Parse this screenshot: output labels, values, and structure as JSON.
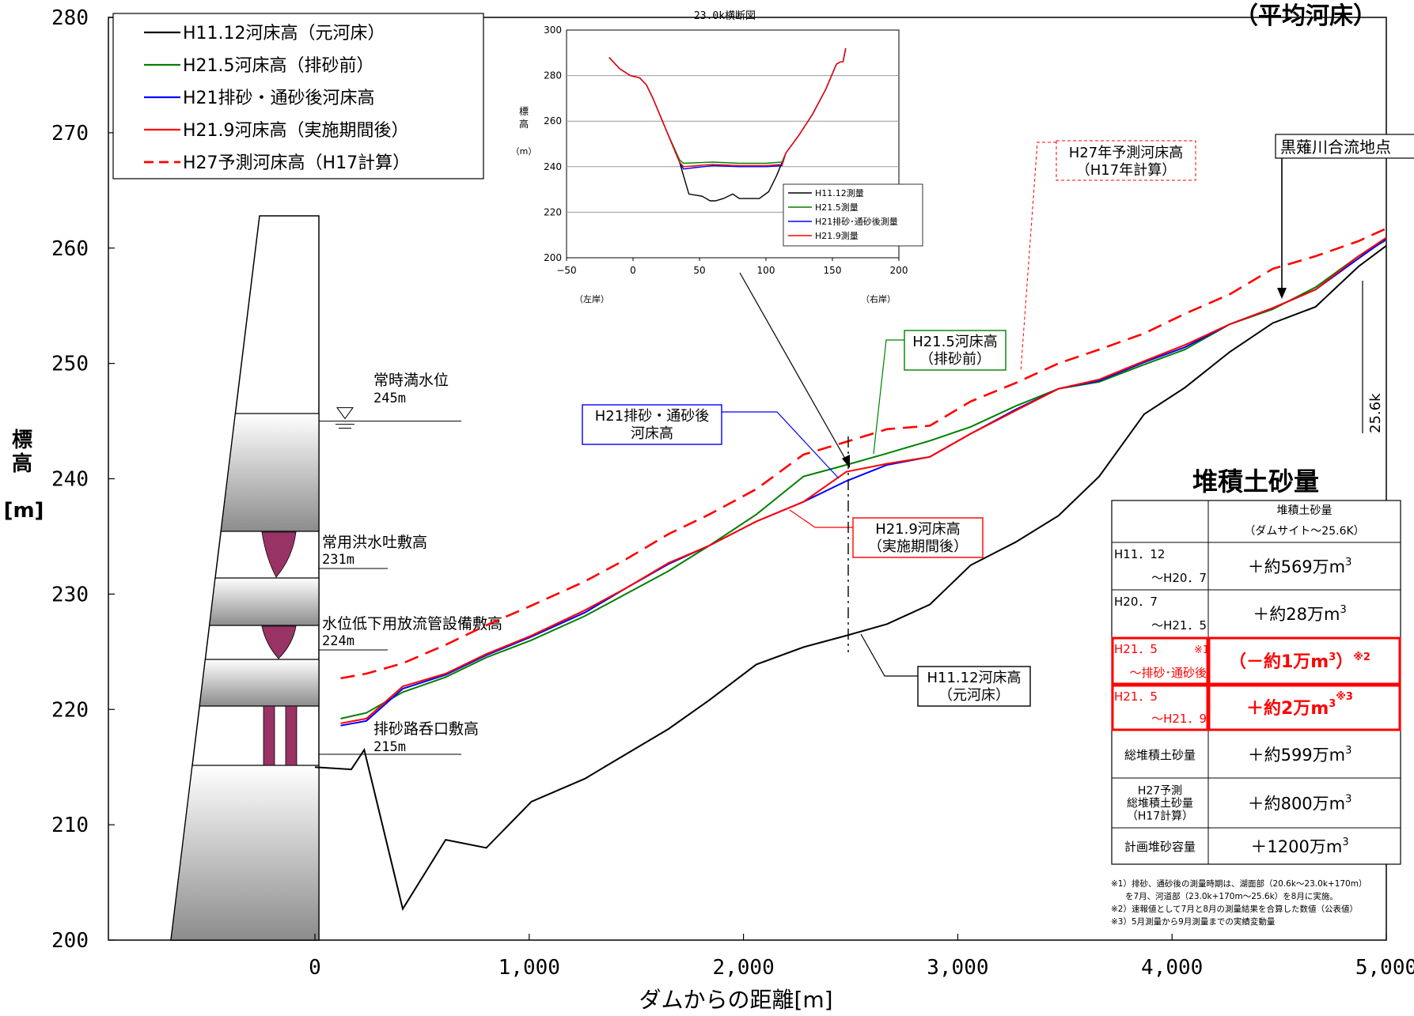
{
  "chart_data": {
    "type": "line",
    "title": "（平均河床）",
    "xlabel": "ダムからの距離[m]",
    "ylabel": "標高[m]",
    "xlim": [
      -1000,
      5000
    ],
    "ylim": [
      200,
      280
    ],
    "x_ticks": [
      0,
      1000,
      2000,
      3000,
      4000,
      5000
    ],
    "x_tick_labels": [
      "0",
      "1,000",
      "2,000",
      "3,000",
      "4,000",
      "5,000"
    ],
    "y_ticks": [
      200,
      210,
      220,
      230,
      240,
      250,
      260,
      270,
      280
    ],
    "grid": false,
    "legend_position": "top-left",
    "series": [
      {
        "name": "H11.12河床高（元河床）",
        "color": "#000000",
        "dash": false,
        "x": [
          0,
          170,
          230,
          410,
          610,
          800,
          1010,
          1260,
          1450,
          1650,
          1840,
          2060,
          2280,
          2480,
          2670,
          2870,
          3060,
          3270,
          3470,
          3660,
          3870,
          4060,
          4270,
          4470,
          4670,
          4870,
          5000
        ],
        "y": [
          215.0,
          214.8,
          216.5,
          202.7,
          208.7,
          208.0,
          212.0,
          214.0,
          216.1,
          218.3,
          220.8,
          223.9,
          225.4,
          226.4,
          227.4,
          229.1,
          232.5,
          234.5,
          236.8,
          240.2,
          245.6,
          247.9,
          251.0,
          253.5,
          254.9,
          258.4,
          260.2
        ]
      },
      {
        "name": "H21.5河床高（排砂前）",
        "color": "#008000",
        "dash": false,
        "x": [
          120,
          240,
          410,
          610,
          800,
          1010,
          1260,
          1450,
          1650,
          1840,
          2060,
          2280,
          2480,
          2670,
          2870,
          3060,
          3270,
          3470,
          3660,
          3870,
          4060,
          4270,
          4470,
          4670,
          4870,
          5000
        ],
        "y": [
          219.2,
          219.7,
          221.5,
          222.8,
          224.5,
          226.0,
          228.1,
          230.0,
          232.0,
          234.2,
          236.9,
          240.2,
          241.2,
          242.2,
          243.3,
          244.5,
          246.3,
          247.8,
          248.4,
          249.9,
          251.2,
          253.4,
          254.7,
          256.6,
          259.3,
          260.7
        ]
      },
      {
        "name": "H21排砂・通砂後河床高",
        "color": "#0000ff",
        "dash": false,
        "x": [
          120,
          240,
          410,
          610,
          800,
          1010,
          1260,
          1450,
          1650,
          1840,
          2060,
          2280,
          2480,
          2670,
          2870,
          3060,
          3270,
          3470,
          3660,
          3870,
          4060,
          4270,
          4470,
          4670,
          4870,
          5000
        ],
        "y": [
          218.6,
          219.0,
          221.8,
          223.0,
          224.7,
          226.3,
          228.4,
          230.5,
          232.6,
          234.2,
          236.3,
          238.0,
          239.8,
          241.2,
          241.9,
          243.9,
          246.0,
          247.8,
          248.5,
          250.1,
          251.4,
          253.4,
          254.8,
          256.4,
          259.1,
          260.8
        ]
      },
      {
        "name": "H21.9河床高（実施期間後）",
        "color": "#ff0000",
        "dash": false,
        "x": [
          120,
          240,
          410,
          610,
          800,
          1010,
          1260,
          1450,
          1650,
          1840,
          2060,
          2280,
          2480,
          2670,
          2870,
          3060,
          3270,
          3470,
          3660,
          3870,
          4060,
          4270,
          4470,
          4670,
          4870,
          5000
        ],
        "y": [
          218.8,
          219.2,
          222.0,
          223.1,
          224.8,
          226.4,
          228.6,
          230.5,
          232.7,
          234.2,
          236.3,
          238.0,
          240.6,
          241.3,
          241.9,
          243.9,
          245.9,
          247.8,
          248.6,
          250.2,
          251.6,
          253.4,
          254.8,
          256.4,
          259.3,
          260.9
        ]
      },
      {
        "name": "H27予測河床高（H17計算）",
        "color": "#ff0000",
        "dash": true,
        "x": [
          120,
          240,
          410,
          610,
          800,
          1010,
          1260,
          1450,
          1650,
          1840,
          2060,
          2280,
          2480,
          2670,
          2870,
          3060,
          3270,
          3470,
          3660,
          3870,
          4060,
          4270,
          4470,
          4670,
          4870,
          5000
        ],
        "y": [
          222.7,
          223.1,
          224.0,
          225.6,
          227.3,
          229.0,
          231.1,
          233.0,
          235.2,
          236.9,
          239.1,
          242.1,
          243.2,
          244.3,
          244.6,
          246.7,
          248.3,
          250.0,
          251.2,
          252.6,
          254.3,
          256.0,
          258.2,
          259.3,
          260.6,
          261.7
        ]
      }
    ],
    "dam": {
      "water_label": "常時満水位",
      "water_value": "245m",
      "spill_label": "常用洪水吐敷高",
      "spill_value": "231m",
      "low_label": "水位低下用放流管設備敷高",
      "low_value": "224m",
      "sand_label": "排砂路呑口敷高",
      "sand_value": "215m"
    },
    "annotations": {
      "h27_line1": "H27年予測河床高",
      "h27_line2": "（H17年計算）",
      "kurobishi": "黒薙川合流地点",
      "h215_line1": "H21.5河床高",
      "h215_line2": "（排砂前）",
      "h21s_line1": "H21排砂・通砂後",
      "h21s_line2": "河床高",
      "h219_line1": "H21.9河床高",
      "h219_line2": "（実施期間後）",
      "h1112_line1": "H11.12河床高",
      "h1112_line2": "（元河床）",
      "k256": "25.6k"
    },
    "inset": {
      "title": "23.0k横断図",
      "ylabel": "標高（m）",
      "xlim": [
        -50,
        200
      ],
      "ylim": [
        200,
        300
      ],
      "x_ticks": [
        -50,
        0,
        50,
        100,
        150,
        200
      ],
      "y_ticks": [
        200,
        220,
        240,
        260,
        280,
        300
      ],
      "left_bank": "（左岸）",
      "right_bank": "（右岸）",
      "series": [
        {
          "name": "H11.12測量",
          "color": "#000000",
          "x": [
            -18,
            -10,
            -2,
            5,
            10,
            15,
            25,
            35,
            42,
            52,
            58,
            62,
            68,
            75,
            80,
            85,
            95,
            102,
            108,
            115,
            125,
            135,
            145,
            153,
            156,
            158,
            160
          ],
          "y": [
            288,
            283,
            280,
            279,
            276,
            270,
            256,
            242,
            228,
            227,
            225,
            225,
            226,
            228,
            226,
            226,
            226,
            229,
            236,
            246,
            254,
            263,
            274,
            285,
            286,
            286,
            292
          ]
        },
        {
          "name": "H21.5測量",
          "color": "#008000",
          "x": [
            -18,
            -10,
            -2,
            5,
            10,
            15,
            25,
            35,
            38,
            60,
            80,
            100,
            112,
            115,
            125,
            135,
            145,
            153,
            156,
            158,
            160
          ],
          "y": [
            288,
            283,
            280,
            279,
            276,
            270,
            256,
            243,
            241.5,
            242,
            241.5,
            241.5,
            242,
            246,
            254,
            263,
            274,
            285,
            286,
            286,
            292
          ]
        },
        {
          "name": "H21排砂･通砂後測量",
          "color": "#0000ff",
          "x": [
            -18,
            -10,
            -2,
            5,
            10,
            15,
            25,
            35,
            38,
            60,
            80,
            100,
            112,
            115,
            125,
            135,
            145,
            153,
            156,
            158,
            160
          ],
          "y": [
            288,
            283,
            280,
            279,
            276,
            270,
            256,
            242,
            239,
            240.5,
            240,
            240,
            240.5,
            246,
            254,
            263,
            274,
            285,
            286,
            286,
            292
          ]
        },
        {
          "name": "H21.9測量",
          "color": "#ff0000",
          "x": [
            -18,
            -10,
            -2,
            5,
            10,
            15,
            25,
            35,
            38,
            60,
            80,
            100,
            112,
            115,
            125,
            135,
            145,
            153,
            156,
            158,
            160
          ],
          "y": [
            288,
            283,
            280,
            279,
            276,
            270,
            256,
            242,
            240,
            241,
            240.5,
            240.5,
            241,
            246,
            254,
            263,
            274,
            285,
            286,
            286,
            292
          ]
        }
      ]
    },
    "sediment_table": {
      "title": "堆積土砂量",
      "header_line1": "堆積土砂量",
      "header_line2": "（ダムサイト～25.6K）",
      "rows": [
        {
          "p1": "H11．12",
          "p2": "～H20．7",
          "value": "＋約569万m",
          "sup": "3",
          "highlight": false
        },
        {
          "p1": "H20．7",
          "p2": "～H21．5",
          "value": "＋約28万m",
          "sup": "3",
          "highlight": false
        },
        {
          "p1": "H21．5",
          "mark": "※1",
          "p2": "～排砂･通砂後",
          "value": "（－約1万m",
          "sup": "3",
          "tail": "）※2",
          "highlight": true
        },
        {
          "p1": "H21．5",
          "p2": "～H21．9",
          "value": "＋約2万m",
          "sup": "3",
          "tail": "※3",
          "highlight": true
        },
        {
          "label": "総堆積土砂量",
          "value": "＋約599万m",
          "sup": "3",
          "highlight": false
        },
        {
          "label1": "H27予測",
          "label2": "総堆積土砂量",
          "label3": "（H17計算）",
          "value": "＋約800万m",
          "sup": "3",
          "highlight": false
        },
        {
          "label": "計画堆砂容量",
          "value": "＋1200万m",
          "sup": "3",
          "highlight": false
        }
      ],
      "notes": [
        "※1）排砂、通砂後の測量時期は、湖面部（20.6k～23.0k+170m）",
        "を7月、河道部（23.0k+170m～25.6k）を8月に実施。",
        "※2）速報値として7月と8月の測量結果を合算した数値（公表値）",
        "※3）5月測量から9月測量までの実績変動量"
      ]
    }
  }
}
